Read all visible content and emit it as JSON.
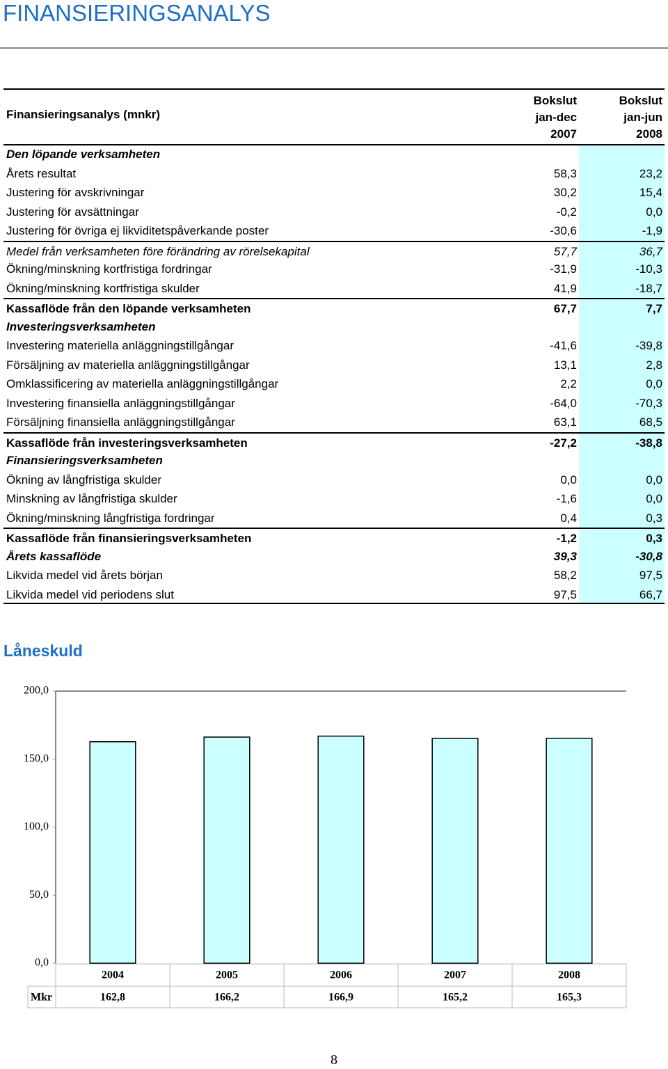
{
  "header": {
    "title": "FINANSIERINGSANALYS"
  },
  "table": {
    "label": "Finansieringsanalys (mnkr)",
    "columns": [
      [
        "Bokslut",
        "jan-dec",
        "2007"
      ],
      [
        "Bokslut",
        "jan-jun",
        "2008"
      ]
    ],
    "rows": [
      {
        "label": "Den löpande verksamheten",
        "style": "section",
        "values": []
      },
      {
        "label": "Årets resultat",
        "style": "item",
        "values": [
          "58,3",
          "23,2"
        ]
      },
      {
        "label": "Justering för avskrivningar",
        "style": "item",
        "values": [
          "30,2",
          "15,4"
        ]
      },
      {
        "label": "Justering för avsättningar",
        "style": "item",
        "values": [
          "-0,2",
          "0,0"
        ]
      },
      {
        "label": "Justering för övriga ej likviditetspåverkande poster",
        "style": "item",
        "values": [
          "-30,6",
          "-1,9"
        ]
      },
      {
        "label": "Medel från verksamheten före förändring av rörelsekapital",
        "style": "subtotal",
        "values": [
          "57,7",
          "36,7"
        ]
      },
      {
        "label": "Ökning/minskning kortfristiga fordringar",
        "style": "item",
        "values": [
          "-31,9",
          "-10,3"
        ]
      },
      {
        "label": "Ökning/minskning kortfristiga skulder",
        "style": "item",
        "values": [
          "41,9",
          "-18,7"
        ]
      },
      {
        "label": "Kassaflöde från den löpande verksamheten",
        "style": "total",
        "values": [
          "67,7",
          "7,7"
        ]
      },
      {
        "label": "Investeringsverksamheten",
        "style": "section",
        "values": []
      },
      {
        "label": "Investering materiella anläggningstillgångar",
        "style": "item",
        "values": [
          "-41,6",
          "-39,8"
        ]
      },
      {
        "label": "Försäljning av materiella anläggningstillgångar",
        "style": "item",
        "values": [
          "13,1",
          "2,8"
        ]
      },
      {
        "label": "Omklassificering av materiella anläggningstillgångar",
        "style": "item",
        "values": [
          "2,2",
          "0,0"
        ]
      },
      {
        "label": "Investering finansiella anläggningstillgångar",
        "style": "item",
        "values": [
          "-64,0",
          "-70,3"
        ]
      },
      {
        "label": "Försäljning finansiella anläggningstillgångar",
        "style": "item",
        "values": [
          "63,1",
          "68,5"
        ]
      },
      {
        "label": "Kassaflöde från investeringsverksamheten",
        "style": "total",
        "values": [
          "-27,2",
          "-38,8"
        ]
      },
      {
        "label": "Finansieringsverksamheten",
        "style": "section",
        "values": []
      },
      {
        "label": "Ökning av långfristiga skulder",
        "style": "item",
        "values": [
          "0,0",
          "0,0"
        ]
      },
      {
        "label": "Minskning av långfristiga skulder",
        "style": "item",
        "values": [
          "-1,6",
          "0,0"
        ]
      },
      {
        "label": "Ökning/minskning långfristiga fordringar",
        "style": "item",
        "values": [
          "0,4",
          "0,3"
        ]
      },
      {
        "label": "Kassaflöde från finansieringsverksamheten",
        "style": "total",
        "values": [
          "-1,2",
          "0,3"
        ]
      },
      {
        "label": "Årets kassaflöde",
        "style": "result",
        "values": [
          "39,3",
          "-30,8"
        ]
      },
      {
        "label": "Likvida medel vid årets början",
        "style": "item",
        "values": [
          "58,2",
          "97,5"
        ]
      },
      {
        "label": "Likvida medel vid periodens slut",
        "style": "item",
        "values": [
          "97,5",
          "66,7"
        ]
      }
    ]
  },
  "chart_data": {
    "type": "bar",
    "title": "Låneskuld",
    "categories": [
      "2004",
      "2005",
      "2006",
      "2007",
      "2008"
    ],
    "row_label": "Mkr",
    "values": [
      162.8,
      166.2,
      166.9,
      165.2,
      165.3
    ],
    "value_labels": [
      "162,8",
      "166,2",
      "166,9",
      "165,2",
      "165,3"
    ],
    "color": "#ccffff",
    "ylim": [
      0,
      200
    ],
    "yticks": [
      {
        "value": 0,
        "label": "0,0"
      },
      {
        "value": 50,
        "label": "50,0"
      },
      {
        "value": 100,
        "label": "100,0"
      },
      {
        "value": 150,
        "label": "150,0"
      },
      {
        "value": 200,
        "label": "200,0"
      }
    ]
  },
  "footer": {
    "page": "8"
  }
}
